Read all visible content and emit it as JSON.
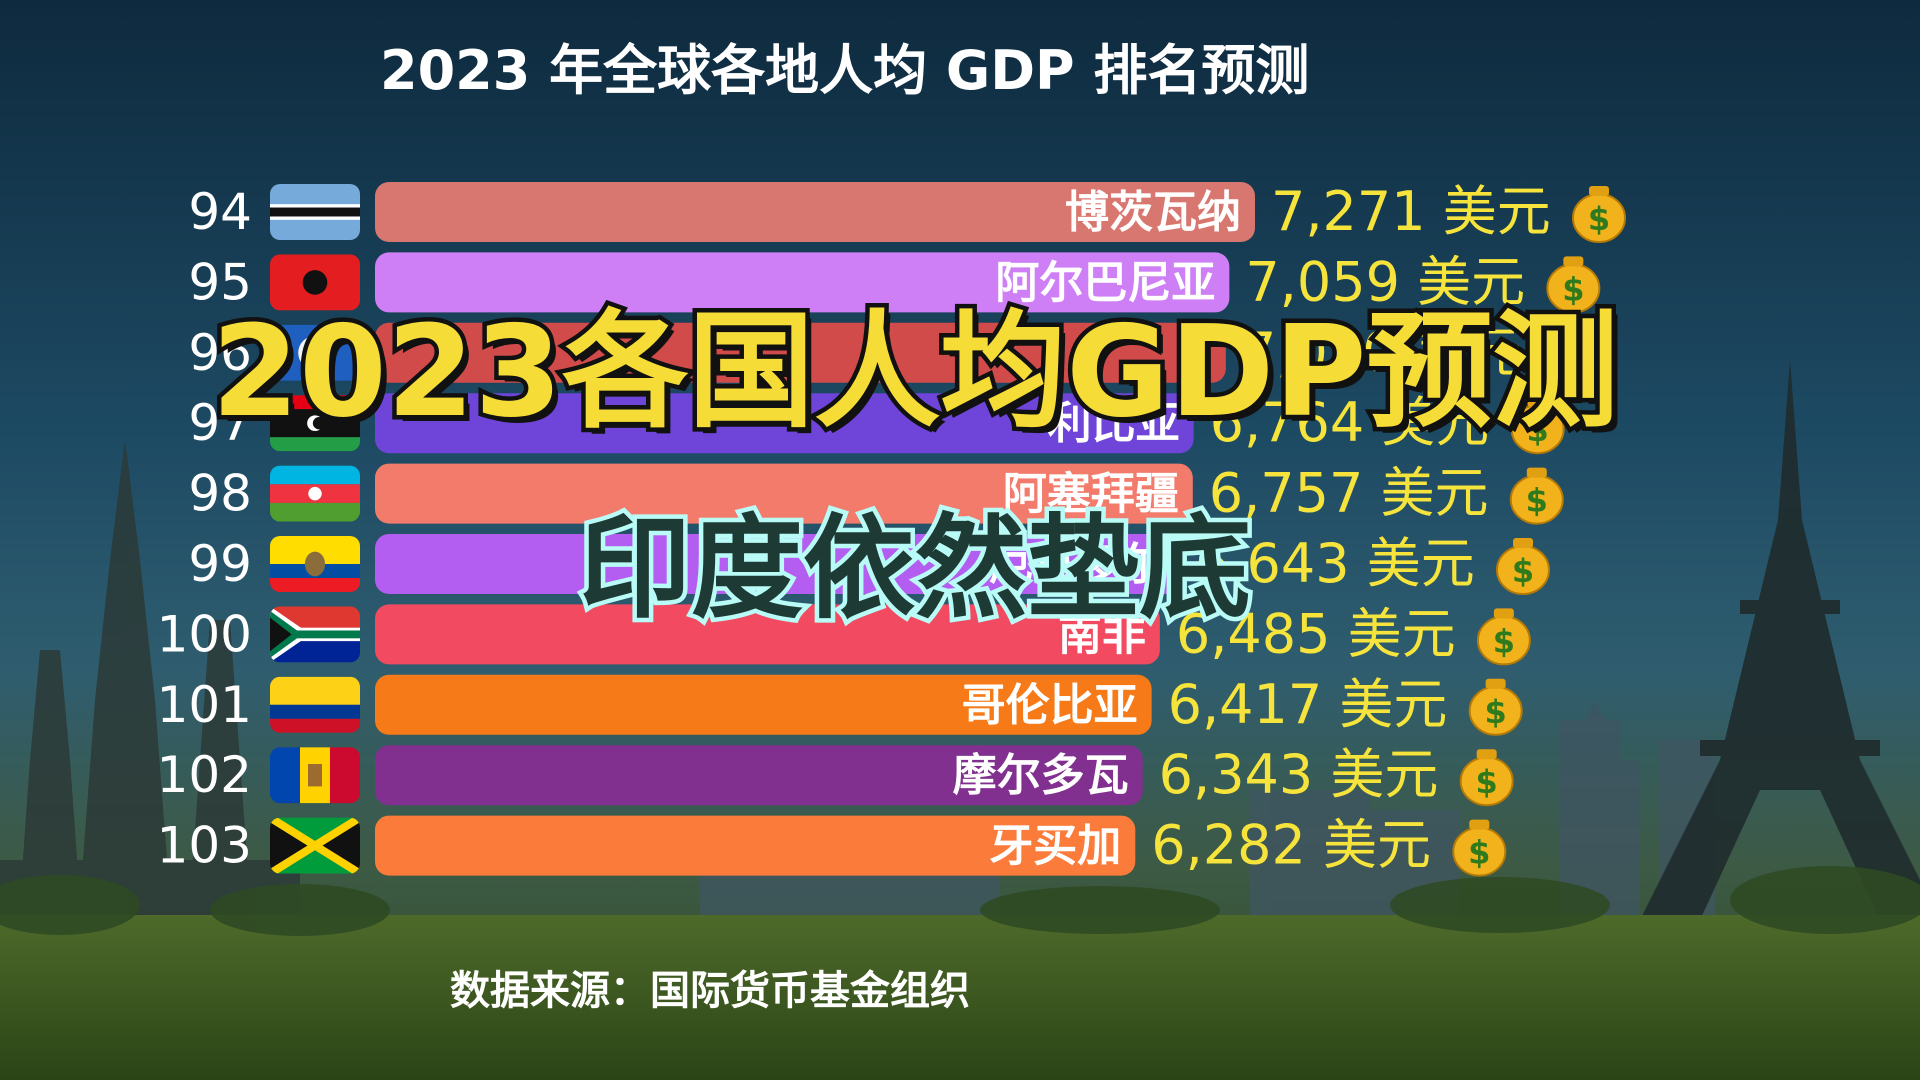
{
  "title": "2023 年全球各地人均 GDP 排名预测",
  "source": "数据来源：国际货币基金组织",
  "overlay": {
    "headline": "2023各国人均GDP预测",
    "subline": "印度依然垫底"
  },
  "currency_label": "美元",
  "coin_icon": "money-bag-icon",
  "colors": {
    "value_text": "#f6e43c",
    "headline_fill": "#f6dc36",
    "subline_stroke": "#b9fbf6"
  },
  "chart_data": {
    "type": "bar",
    "orientation": "horizontal",
    "title": "2023 年全球各地人均 GDP 排名预测",
    "unit": "美元",
    "xlim": [
      0,
      7271
    ],
    "rows": [
      {
        "rank": 94,
        "country": "博茨瓦纳",
        "value": 7271,
        "label": "7,271",
        "color": "#d7776f",
        "flag": "botswana"
      },
      {
        "rank": 95,
        "country": "阿尔巴尼亚",
        "value": 7059,
        "label": "7,059",
        "color": "#cf7ff5",
        "flag": "albania"
      },
      {
        "rank": 96,
        "country": "",
        "value": 7030,
        "label": "7,030",
        "color": "#d24b4b",
        "flag": "blue-seal"
      },
      {
        "rank": 97,
        "country": "利比亚",
        "value": 6764,
        "label": "6,764",
        "color": "#6e45d8",
        "flag": "libya"
      },
      {
        "rank": 98,
        "country": "阿塞拜疆",
        "value": 6757,
        "label": "6,757",
        "color": "#f27b6c",
        "flag": "azerbaijan"
      },
      {
        "rank": 99,
        "country": "厄瓜多尔",
        "value": 6643,
        "label": "6,643",
        "color": "#b35ef0",
        "flag": "ecuador"
      },
      {
        "rank": 100,
        "country": "南非",
        "value": 6485,
        "label": "6,485",
        "color": "#f24a60",
        "flag": "south-africa"
      },
      {
        "rank": 101,
        "country": "哥伦比亚",
        "value": 6417,
        "label": "6,417",
        "color": "#f67a17",
        "flag": "colombia"
      },
      {
        "rank": 102,
        "country": "摩尔多瓦",
        "value": 6343,
        "label": "6,343",
        "color": "#81308f",
        "flag": "moldova"
      },
      {
        "rank": 103,
        "country": "牙买加",
        "value": 6282,
        "label": "6,282",
        "color": "#fb7b3a",
        "flag": "jamaica"
      }
    ]
  }
}
